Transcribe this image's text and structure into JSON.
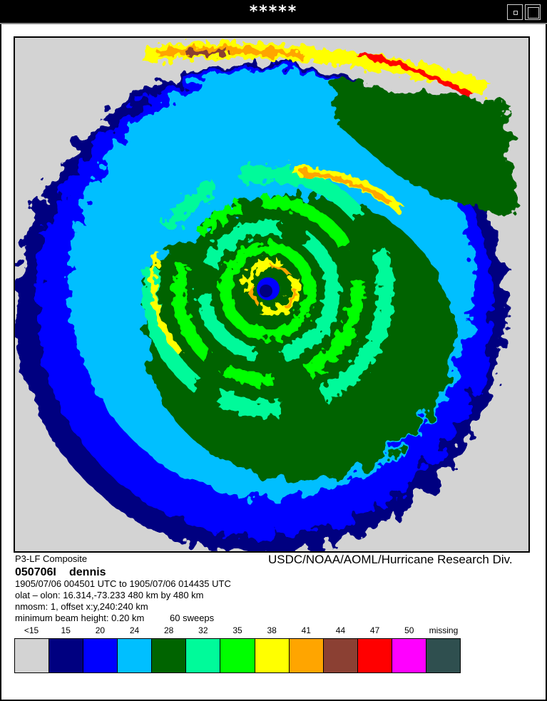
{
  "window": {
    "title": "*****"
  },
  "product": "P3-LF Composite",
  "credit": "USDC/NOAA/AOML/Hurricane Research Div.",
  "storm": {
    "id": "050706I",
    "name": "dennis"
  },
  "info": {
    "time_range": "1905/07/06 004501 UTC to 1905/07/06 014435 UTC",
    "location": "olat – olon: 16.314,-73.233  480 km by 480 km",
    "offset": "nmosm: 1, offset x:y,240:240 km",
    "beam": "minimum beam height: 0.20 km",
    "sweeps": "60 sweeps"
  },
  "legend": [
    {
      "label": "<15",
      "color": "#d3d3d3"
    },
    {
      "label": "15",
      "color": "#000080"
    },
    {
      "label": "20",
      "color": "#0000ff"
    },
    {
      "label": "24",
      "color": "#00bfff"
    },
    {
      "label": "28",
      "color": "#006400"
    },
    {
      "label": "32",
      "color": "#00fa9a"
    },
    {
      "label": "35",
      "color": "#00ff00"
    },
    {
      "label": "38",
      "color": "#ffff00"
    },
    {
      "label": "41",
      "color": "#ffa500"
    },
    {
      "label": "44",
      "color": "#8b4033"
    },
    {
      "label": "47",
      "color": "#ff0000"
    },
    {
      "label": "50",
      "color": "#ff00ff"
    },
    {
      "label": "missing",
      "color": "#2f4f4f"
    }
  ]
}
